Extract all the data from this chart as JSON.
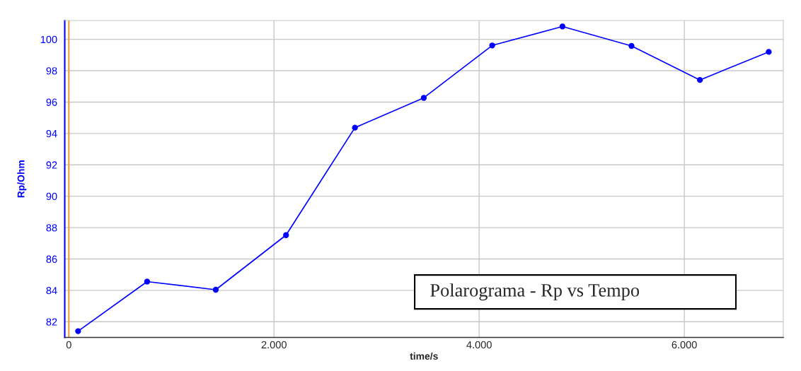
{
  "chart_data": {
    "type": "line",
    "xlabel": "time/s",
    "ylabel": "Rp/Ohm",
    "x": [
      90,
      763,
      1432,
      2117,
      2789,
      3460,
      4127,
      4812,
      5485,
      6152,
      6823
    ],
    "series": [
      {
        "color": "#0000ff",
        "values": [
          81.4,
          84.56,
          84.04,
          87.52,
          94.37,
          96.27,
          99.61,
          100.82,
          99.58,
          97.41,
          99.2
        ]
      }
    ],
    "xlim": [
      -40,
      6965
    ],
    "ylim": [
      81.0,
      101.2
    ],
    "xticks": [
      0,
      {
        "value": 2000,
        "label": "2.000"
      },
      {
        "value": 4000,
        "label": "4.000"
      },
      {
        "value": 6000,
        "label": "6.000"
      }
    ],
    "yticks": [
      82,
      84,
      86,
      88,
      90,
      92,
      94,
      96,
      98,
      100
    ],
    "ref_lines": [
      {
        "axis": "x",
        "value": 0,
        "color": "#f39c3c"
      }
    ],
    "annotations": [
      "Polarograma - Rp vs Tempo"
    ],
    "grid": true,
    "marker": "circle",
    "line_style": "solid"
  }
}
